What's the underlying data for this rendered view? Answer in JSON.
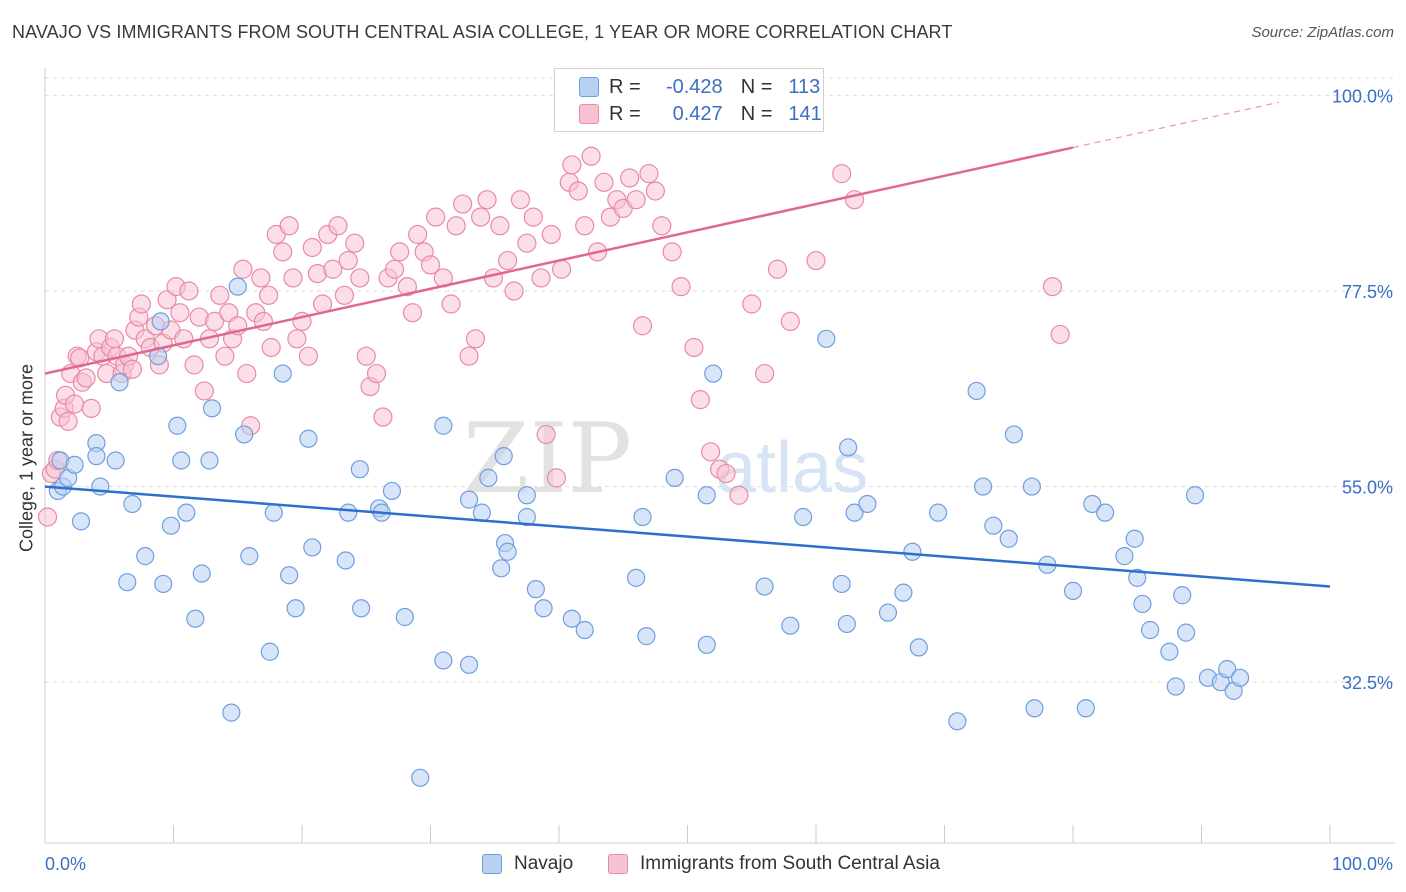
{
  "title": "NAVAJO VS IMMIGRANTS FROM SOUTH CENTRAL ASIA COLLEGE, 1 YEAR OR MORE CORRELATION CHART",
  "source": "Source: ZipAtlas.com",
  "watermark": {
    "zip": "ZIP",
    "atlas": "atlas"
  },
  "legend": {
    "r_label": "R =",
    "n_label": "N =",
    "rows": [
      {
        "r": "-0.428",
        "n": "113",
        "color": "#a9c8f0",
        "border": "#6c9ee0"
      },
      {
        "r": "0.427",
        "n": "141",
        "color": "#f7bfd0",
        "border": "#e98aa8"
      }
    ]
  },
  "colors": {
    "navajo_fill": "#b8d0f2",
    "navajo_stroke": "#6e9fe0",
    "navajo_line": "#2f6fcc",
    "immig_fill": "#f7c3d3",
    "immig_stroke": "#e98aa8",
    "immig_line": "#e0678f",
    "axis_text": "#3a6fc4",
    "grid": "#dddddd"
  },
  "chart_data": {
    "type": "scatter",
    "title": "NAVAJO VS IMMIGRANTS FROM SOUTH CENTRAL ASIA COLLEGE, 1 YEAR OR MORE CORRELATION CHART",
    "xlabel": "",
    "ylabel": "College, 1 year or more",
    "x_tick_labels": [
      "0.0%",
      "100.0%"
    ],
    "y_tick_labels": [
      "100.0%",
      "77.5%",
      "55.0%",
      "32.5%"
    ],
    "y_ticks": [
      100.0,
      77.5,
      55.0,
      32.5
    ],
    "xlim": [
      0,
      100
    ],
    "ylim": [
      14,
      102
    ],
    "grid": true,
    "legend_position": "top-center and bottom",
    "series": [
      {
        "name": "Navajo",
        "r": -0.428,
        "n": 113,
        "trend": {
          "x": [
            0,
            100
          ],
          "y": [
            55.0,
            43.5
          ]
        },
        "points": [
          [
            1,
            54.5
          ],
          [
            1.2,
            58
          ],
          [
            1.4,
            55
          ],
          [
            1.8,
            56
          ],
          [
            2.3,
            57.5
          ],
          [
            2.8,
            51
          ],
          [
            4,
            60
          ],
          [
            4,
            58.5
          ],
          [
            4.3,
            55
          ],
          [
            5.5,
            58
          ],
          [
            5.8,
            67
          ],
          [
            6.4,
            44
          ],
          [
            6.8,
            53
          ],
          [
            7.8,
            47
          ],
          [
            8.8,
            70
          ],
          [
            9,
            74
          ],
          [
            9.2,
            43.8
          ],
          [
            9.8,
            50.5
          ],
          [
            10.3,
            62
          ],
          [
            10.6,
            58
          ],
          [
            11,
            52
          ],
          [
            11.7,
            39.8
          ],
          [
            12.2,
            45
          ],
          [
            12.8,
            58
          ],
          [
            13,
            64
          ],
          [
            14.5,
            29
          ],
          [
            15,
            78
          ],
          [
            15.5,
            61
          ],
          [
            15.9,
            47
          ],
          [
            17.5,
            36
          ],
          [
            17.8,
            52
          ],
          [
            18.5,
            68
          ],
          [
            19,
            44.8
          ],
          [
            19.5,
            41
          ],
          [
            20.5,
            60.5
          ],
          [
            20.8,
            48
          ],
          [
            23.4,
            46.5
          ],
          [
            23.6,
            52
          ],
          [
            24.5,
            57
          ],
          [
            24.6,
            41
          ],
          [
            26,
            52.5
          ],
          [
            26.2,
            52
          ],
          [
            27,
            54.5
          ],
          [
            28,
            40
          ],
          [
            29.2,
            21.5
          ],
          [
            31,
            35
          ],
          [
            31,
            62
          ],
          [
            33,
            34.5
          ],
          [
            33,
            53.5
          ],
          [
            34,
            52
          ],
          [
            34.5,
            56
          ],
          [
            35.5,
            45.6
          ],
          [
            35.7,
            58.5
          ],
          [
            35.8,
            48.5
          ],
          [
            36,
            47.5
          ],
          [
            37.5,
            54
          ],
          [
            37.5,
            51.5
          ],
          [
            38.2,
            43.2
          ],
          [
            38.8,
            41
          ],
          [
            41,
            39.8
          ],
          [
            42,
            38.5
          ],
          [
            46,
            44.5
          ],
          [
            46.5,
            51.5
          ],
          [
            46.8,
            37.8
          ],
          [
            49,
            56
          ],
          [
            51.5,
            36.8
          ],
          [
            51.5,
            54
          ],
          [
            52,
            68
          ],
          [
            56,
            43.5
          ],
          [
            58,
            39
          ],
          [
            59,
            51.5
          ],
          [
            60.8,
            72
          ],
          [
            62,
            43.8
          ],
          [
            62.4,
            39.2
          ],
          [
            62.5,
            59.5
          ],
          [
            63,
            52
          ],
          [
            64,
            53
          ],
          [
            65.6,
            40.5
          ],
          [
            66.8,
            42.8
          ],
          [
            67.5,
            47.5
          ],
          [
            68,
            36.5
          ],
          [
            69.5,
            52
          ],
          [
            71,
            28
          ],
          [
            72.5,
            66
          ],
          [
            73,
            55
          ],
          [
            73.8,
            50.5
          ],
          [
            75,
            49
          ],
          [
            75.4,
            61
          ],
          [
            76.8,
            55
          ],
          [
            77,
            29.5
          ],
          [
            78,
            46
          ],
          [
            80,
            43
          ],
          [
            81,
            29.5
          ],
          [
            81.5,
            53
          ],
          [
            82.5,
            52
          ],
          [
            84,
            47
          ],
          [
            84.8,
            49
          ],
          [
            85,
            44.5
          ],
          [
            85.4,
            41.5
          ],
          [
            86,
            38.5
          ],
          [
            87.5,
            36
          ],
          [
            88,
            32
          ],
          [
            88.5,
            42.5
          ],
          [
            88.8,
            38.2
          ],
          [
            89.5,
            54
          ],
          [
            90.5,
            33
          ],
          [
            91.5,
            32.5
          ],
          [
            92,
            34
          ],
          [
            92.5,
            31.5
          ],
          [
            93,
            33
          ]
        ]
      },
      {
        "name": "Immigrants from South Central Asia",
        "r": 0.427,
        "n": 141,
        "trend": {
          "x": [
            0,
            80
          ],
          "y": [
            68.0,
            94.0
          ]
        },
        "trend_dashed": {
          "x": [
            80,
            96
          ],
          "y": [
            94.0,
            99.2
          ]
        },
        "points": [
          [
            0.2,
            51.5
          ],
          [
            0.5,
            56.5
          ],
          [
            0.8,
            57
          ],
          [
            1,
            58
          ],
          [
            1.2,
            63
          ],
          [
            1.5,
            64
          ],
          [
            1.6,
            65.5
          ],
          [
            1.8,
            62.5
          ],
          [
            2,
            68
          ],
          [
            2.3,
            64.5
          ],
          [
            2.5,
            70
          ],
          [
            2.7,
            69.8
          ],
          [
            2.9,
            67
          ],
          [
            3.2,
            67.5
          ],
          [
            3.6,
            64
          ],
          [
            4,
            70.5
          ],
          [
            4.2,
            72
          ],
          [
            4.5,
            70
          ],
          [
            4.8,
            68
          ],
          [
            5.1,
            71
          ],
          [
            5.4,
            72
          ],
          [
            5.6,
            70
          ],
          [
            6,
            68
          ],
          [
            6.2,
            69
          ],
          [
            6.5,
            70
          ],
          [
            6.8,
            68.5
          ],
          [
            7,
            73
          ],
          [
            7.3,
            74.5
          ],
          [
            7.5,
            76
          ],
          [
            7.8,
            72
          ],
          [
            8.2,
            71
          ],
          [
            8.6,
            73.5
          ],
          [
            8.9,
            69
          ],
          [
            9.2,
            71.5
          ],
          [
            9.5,
            76.5
          ],
          [
            9.8,
            73
          ],
          [
            10.2,
            78
          ],
          [
            10.5,
            75
          ],
          [
            10.8,
            72
          ],
          [
            11.2,
            77.5
          ],
          [
            11.6,
            69
          ],
          [
            12,
            74.5
          ],
          [
            12.4,
            66
          ],
          [
            12.8,
            72
          ],
          [
            13.2,
            74
          ],
          [
            13.6,
            77
          ],
          [
            14,
            70
          ],
          [
            14.3,
            75
          ],
          [
            14.6,
            72
          ],
          [
            15,
            73.5
          ],
          [
            15.4,
            80
          ],
          [
            15.7,
            68
          ],
          [
            16,
            62
          ],
          [
            16.4,
            75
          ],
          [
            16.8,
            79
          ],
          [
            17,
            74
          ],
          [
            17.4,
            77
          ],
          [
            17.6,
            71
          ],
          [
            18,
            84
          ],
          [
            18.5,
            82
          ],
          [
            19,
            85
          ],
          [
            19.3,
            79
          ],
          [
            19.6,
            72
          ],
          [
            20,
            74
          ],
          [
            20.5,
            70
          ],
          [
            20.8,
            82.5
          ],
          [
            21.2,
            79.5
          ],
          [
            21.6,
            76
          ],
          [
            22,
            84
          ],
          [
            22.4,
            80
          ],
          [
            22.8,
            85
          ],
          [
            23.3,
            77
          ],
          [
            23.6,
            81
          ],
          [
            24.1,
            83
          ],
          [
            24.5,
            79
          ],
          [
            25,
            70
          ],
          [
            25.3,
            66.5
          ],
          [
            25.8,
            68
          ],
          [
            26.3,
            63
          ],
          [
            26.7,
            79
          ],
          [
            27.2,
            80
          ],
          [
            27.6,
            82
          ],
          [
            28.2,
            78
          ],
          [
            28.6,
            75
          ],
          [
            29,
            84
          ],
          [
            29.5,
            82
          ],
          [
            30,
            80.5
          ],
          [
            30.4,
            86
          ],
          [
            31,
            79
          ],
          [
            31.6,
            76
          ],
          [
            32,
            85
          ],
          [
            32.5,
            87.5
          ],
          [
            33,
            70
          ],
          [
            33.5,
            72
          ],
          [
            33.9,
            86
          ],
          [
            34.4,
            88
          ],
          [
            34.9,
            79
          ],
          [
            35.4,
            85
          ],
          [
            36,
            81
          ],
          [
            36.5,
            77.5
          ],
          [
            37,
            88
          ],
          [
            37.5,
            83
          ],
          [
            38,
            86
          ],
          [
            38.6,
            79
          ],
          [
            39,
            61
          ],
          [
            39.4,
            84
          ],
          [
            39.8,
            56
          ],
          [
            40.2,
            80
          ],
          [
            40.8,
            90
          ],
          [
            41,
            92
          ],
          [
            41.5,
            89
          ],
          [
            42,
            85
          ],
          [
            42.5,
            93
          ],
          [
            43,
            82
          ],
          [
            43.5,
            90
          ],
          [
            44,
            86
          ],
          [
            44.5,
            88
          ],
          [
            45,
            87
          ],
          [
            45.5,
            90.5
          ],
          [
            46,
            88
          ],
          [
            46.5,
            73.5
          ],
          [
            47,
            91
          ],
          [
            47.5,
            89
          ],
          [
            48,
            85
          ],
          [
            48.8,
            82
          ],
          [
            49.5,
            78
          ],
          [
            50.5,
            71
          ],
          [
            51,
            65
          ],
          [
            51.8,
            59
          ],
          [
            52.5,
            57
          ],
          [
            53,
            56.5
          ],
          [
            54,
            54
          ],
          [
            55,
            76
          ],
          [
            56,
            68
          ],
          [
            57,
            80
          ],
          [
            58,
            74
          ],
          [
            60,
            81
          ],
          [
            62,
            91
          ],
          [
            63,
            88
          ],
          [
            78.4,
            78
          ],
          [
            79,
            72.5
          ]
        ]
      }
    ]
  },
  "x_axis": {
    "left_label": "0.0%",
    "right_label": "100.0%"
  },
  "y_axis_label": "College, 1 year or more",
  "bottom_legend": [
    {
      "label": "Navajo"
    },
    {
      "label": "Immigrants from South Central Asia"
    }
  ]
}
